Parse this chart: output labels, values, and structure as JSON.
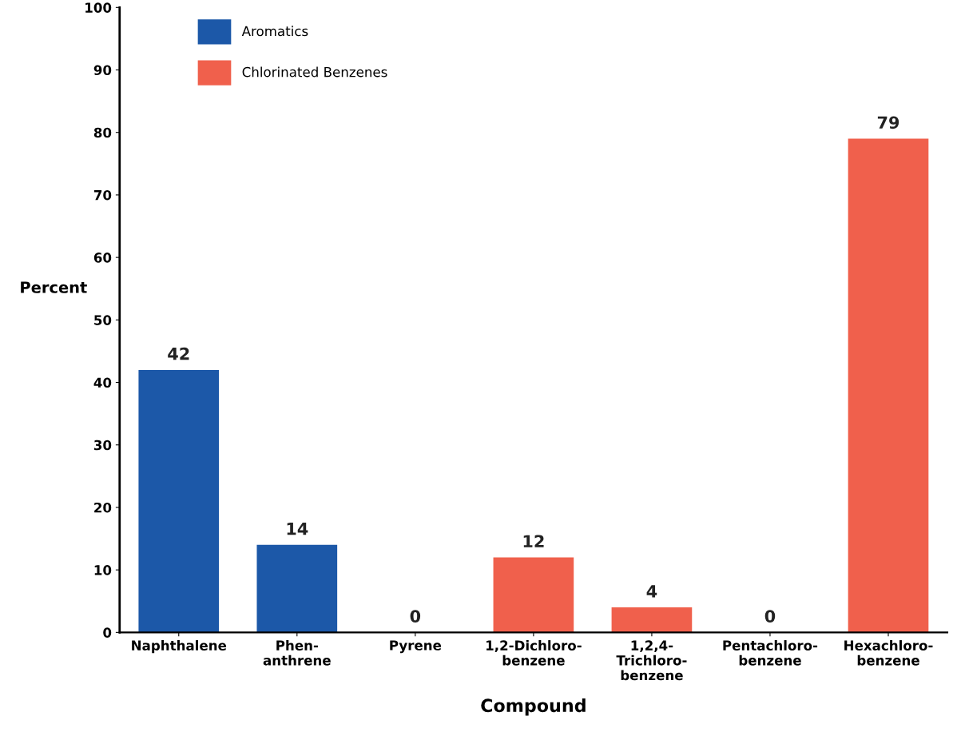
{
  "chart_data": {
    "type": "bar",
    "xlabel": "Compound",
    "ylabel": "Percent",
    "categories": [
      "Naphthalene",
      "Phen-\nanthrene",
      "Pyrene",
      "1,2-Dichloro-\nbenzene",
      "1,2,4-\nTrichloro-\nbenzene",
      "Pentachloro-\nbenzene",
      "Hexachloro-\nbenzene"
    ],
    "series": [
      {
        "name": "Aromatics",
        "color": "#1c58a8",
        "values": [
          42,
          14,
          0,
          null,
          null,
          null,
          null
        ]
      },
      {
        "name": "Chlorinated Benzenes",
        "color": "#f0604c",
        "values": [
          null,
          null,
          null,
          12,
          4,
          0,
          79
        ]
      }
    ],
    "ylim": [
      0,
      100
    ],
    "yticks": [
      0,
      10,
      20,
      30,
      40,
      50,
      60,
      70,
      80,
      90,
      100
    ],
    "data_labels": true,
    "grid": false,
    "legend": "top left"
  }
}
